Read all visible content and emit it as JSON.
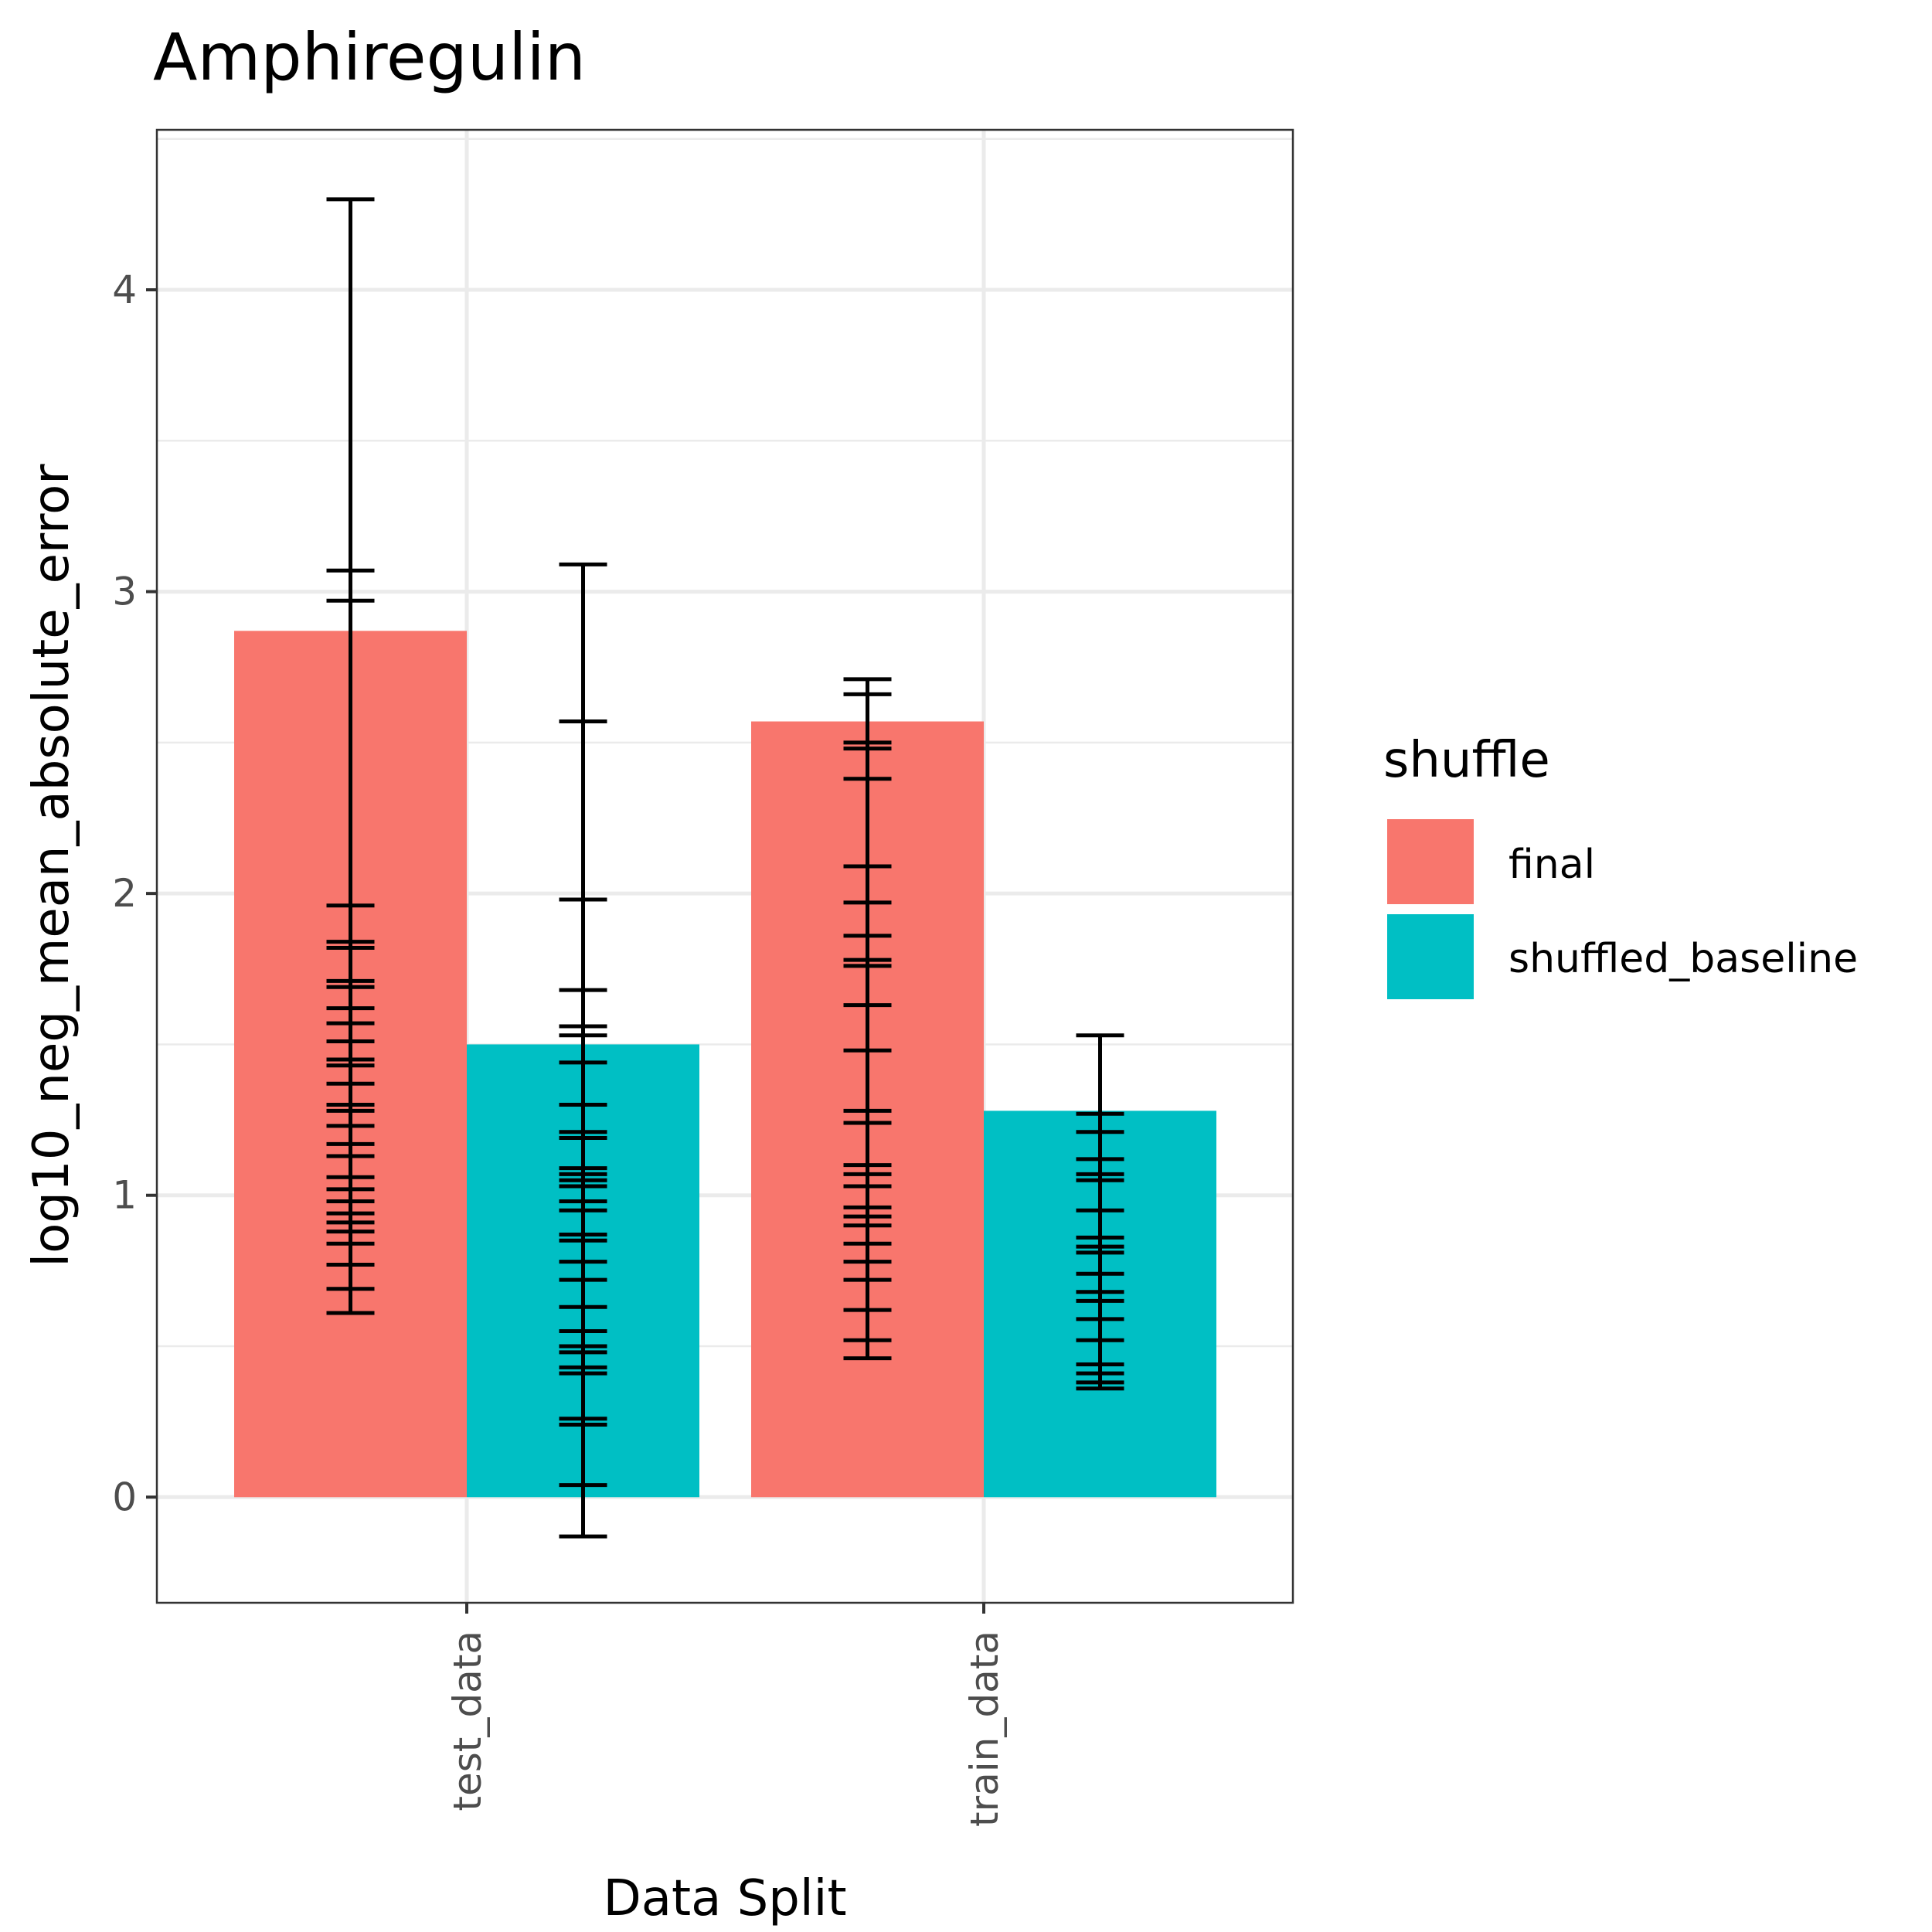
{
  "chart_data": {
    "type": "bar",
    "title": "Amphiregulin",
    "xlabel": "Data Split",
    "ylabel": "log10_neg_mean_absolute_error",
    "ylim": [
      -0.35,
      4.53
    ],
    "yticks": [
      "0",
      "1",
      "2",
      "3",
      "4"
    ],
    "grid": true,
    "categories": [
      "test_data",
      "train_data"
    ],
    "legend": {
      "title": "shuffle",
      "position": "right"
    },
    "series": [
      {
        "name": "final",
        "color": "#f8766d",
        "values": [
          2.87,
          2.57
        ],
        "error_ticks": [
          [
            4.3,
            3.07,
            2.97,
            1.96,
            1.84,
            1.82,
            1.71,
            1.69,
            1.62,
            1.57,
            1.51,
            1.45,
            1.43,
            1.37,
            1.3,
            1.28,
            1.23,
            1.17,
            1.13,
            1.06,
            1.02,
            0.98,
            0.94,
            0.91,
            0.88,
            0.84,
            0.77,
            0.69,
            0.61
          ],
          [
            2.71,
            2.66,
            2.5,
            2.48,
            2.38,
            2.09,
            1.97,
            1.86,
            1.78,
            1.76,
            1.63,
            1.48,
            1.28,
            1.24,
            1.1,
            1.07,
            1.03,
            0.96,
            0.93,
            0.9,
            0.84,
            0.78,
            0.72,
            0.62,
            0.52,
            0.46
          ]
        ]
      },
      {
        "name": "shuffled_baseline",
        "color": "#00bfc4",
        "values": [
          1.5,
          1.28
        ],
        "error_ticks": [
          [
            3.09,
            2.57,
            1.98,
            1.68,
            1.56,
            1.53,
            1.44,
            1.3,
            1.21,
            1.19,
            1.09,
            1.07,
            1.05,
            1.03,
            0.98,
            0.95,
            0.87,
            0.85,
            0.78,
            0.72,
            0.63,
            0.55,
            0.5,
            0.48,
            0.43,
            0.41,
            0.26,
            0.24,
            0.04,
            -0.13
          ],
          [
            1.53,
            1.27,
            1.21,
            1.12,
            1.07,
            1.05,
            0.95,
            0.86,
            0.83,
            0.81,
            0.74,
            0.68,
            0.65,
            0.59,
            0.52,
            0.44,
            0.41,
            0.38,
            0.36
          ]
        ]
      }
    ]
  }
}
